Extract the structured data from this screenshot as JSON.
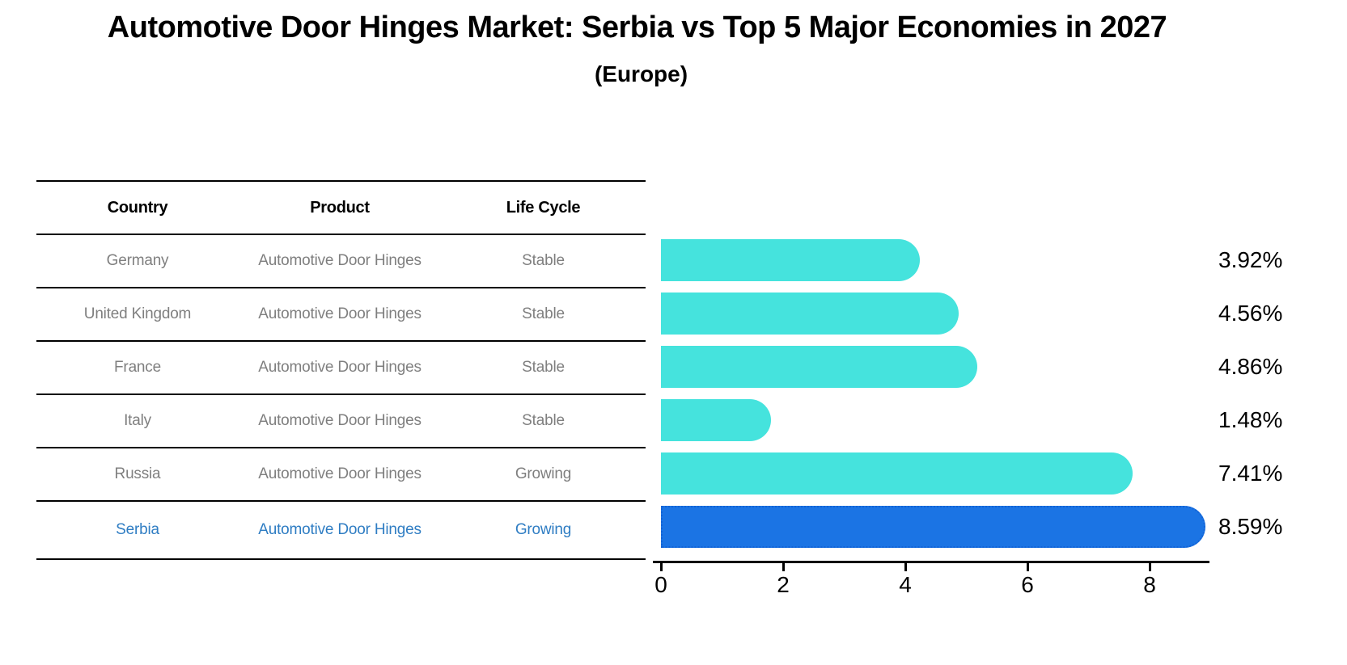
{
  "title": "Automotive Door Hinges Market: Serbia vs Top 5 Major Economies in 2027",
  "subtitle": "(Europe)",
  "colors": {
    "bar_default": "#45E3DD",
    "bar_highlight": "#1B74E4",
    "bar_highlight_border": "#1263D6",
    "table_text": "#7f7f7f",
    "highlight_text": "#2f7dc3",
    "header_text": "#000000",
    "background": "#ffffff"
  },
  "table": {
    "headers": [
      "Country",
      "Product",
      "Life Cycle"
    ],
    "rows": [
      {
        "country": "Germany",
        "product": "Automotive Door Hinges",
        "life_cycle": "Stable",
        "highlight": false
      },
      {
        "country": "United Kingdom",
        "product": "Automotive Door Hinges",
        "life_cycle": "Stable",
        "highlight": false
      },
      {
        "country": "France",
        "product": "Automotive Door Hinges",
        "life_cycle": "Stable",
        "highlight": false
      },
      {
        "country": "Italy",
        "product": "Automotive Door Hinges",
        "life_cycle": "Stable",
        "highlight": false
      },
      {
        "country": "Russia",
        "product": "Automotive Door Hinges",
        "life_cycle": "Growing",
        "highlight": false
      },
      {
        "country": "Serbia",
        "product": "Automotive Door Hinges",
        "life_cycle": "Growing",
        "highlight": true
      }
    ]
  },
  "chart_data": {
    "type": "bar",
    "orientation": "horizontal",
    "title": "Automotive Door Hinges Market: Serbia vs Top 5 Major Economies in 2027 (Europe)",
    "categories": [
      "Germany",
      "United Kingdom",
      "France",
      "Italy",
      "Russia",
      "Serbia"
    ],
    "values": [
      3.92,
      4.56,
      4.86,
      1.48,
      7.41,
      8.59
    ],
    "value_labels": [
      "3.92%",
      "4.56%",
      "4.86%",
      "1.48%",
      "7.41%",
      "8.59%"
    ],
    "xlabel": "",
    "ylabel": "",
    "xlim": [
      0,
      9
    ],
    "x_ticks": [
      0,
      2,
      4,
      6,
      8
    ],
    "grid": false,
    "legend": "none",
    "highlight_index": 5,
    "highlight_category": "Serbia"
  }
}
